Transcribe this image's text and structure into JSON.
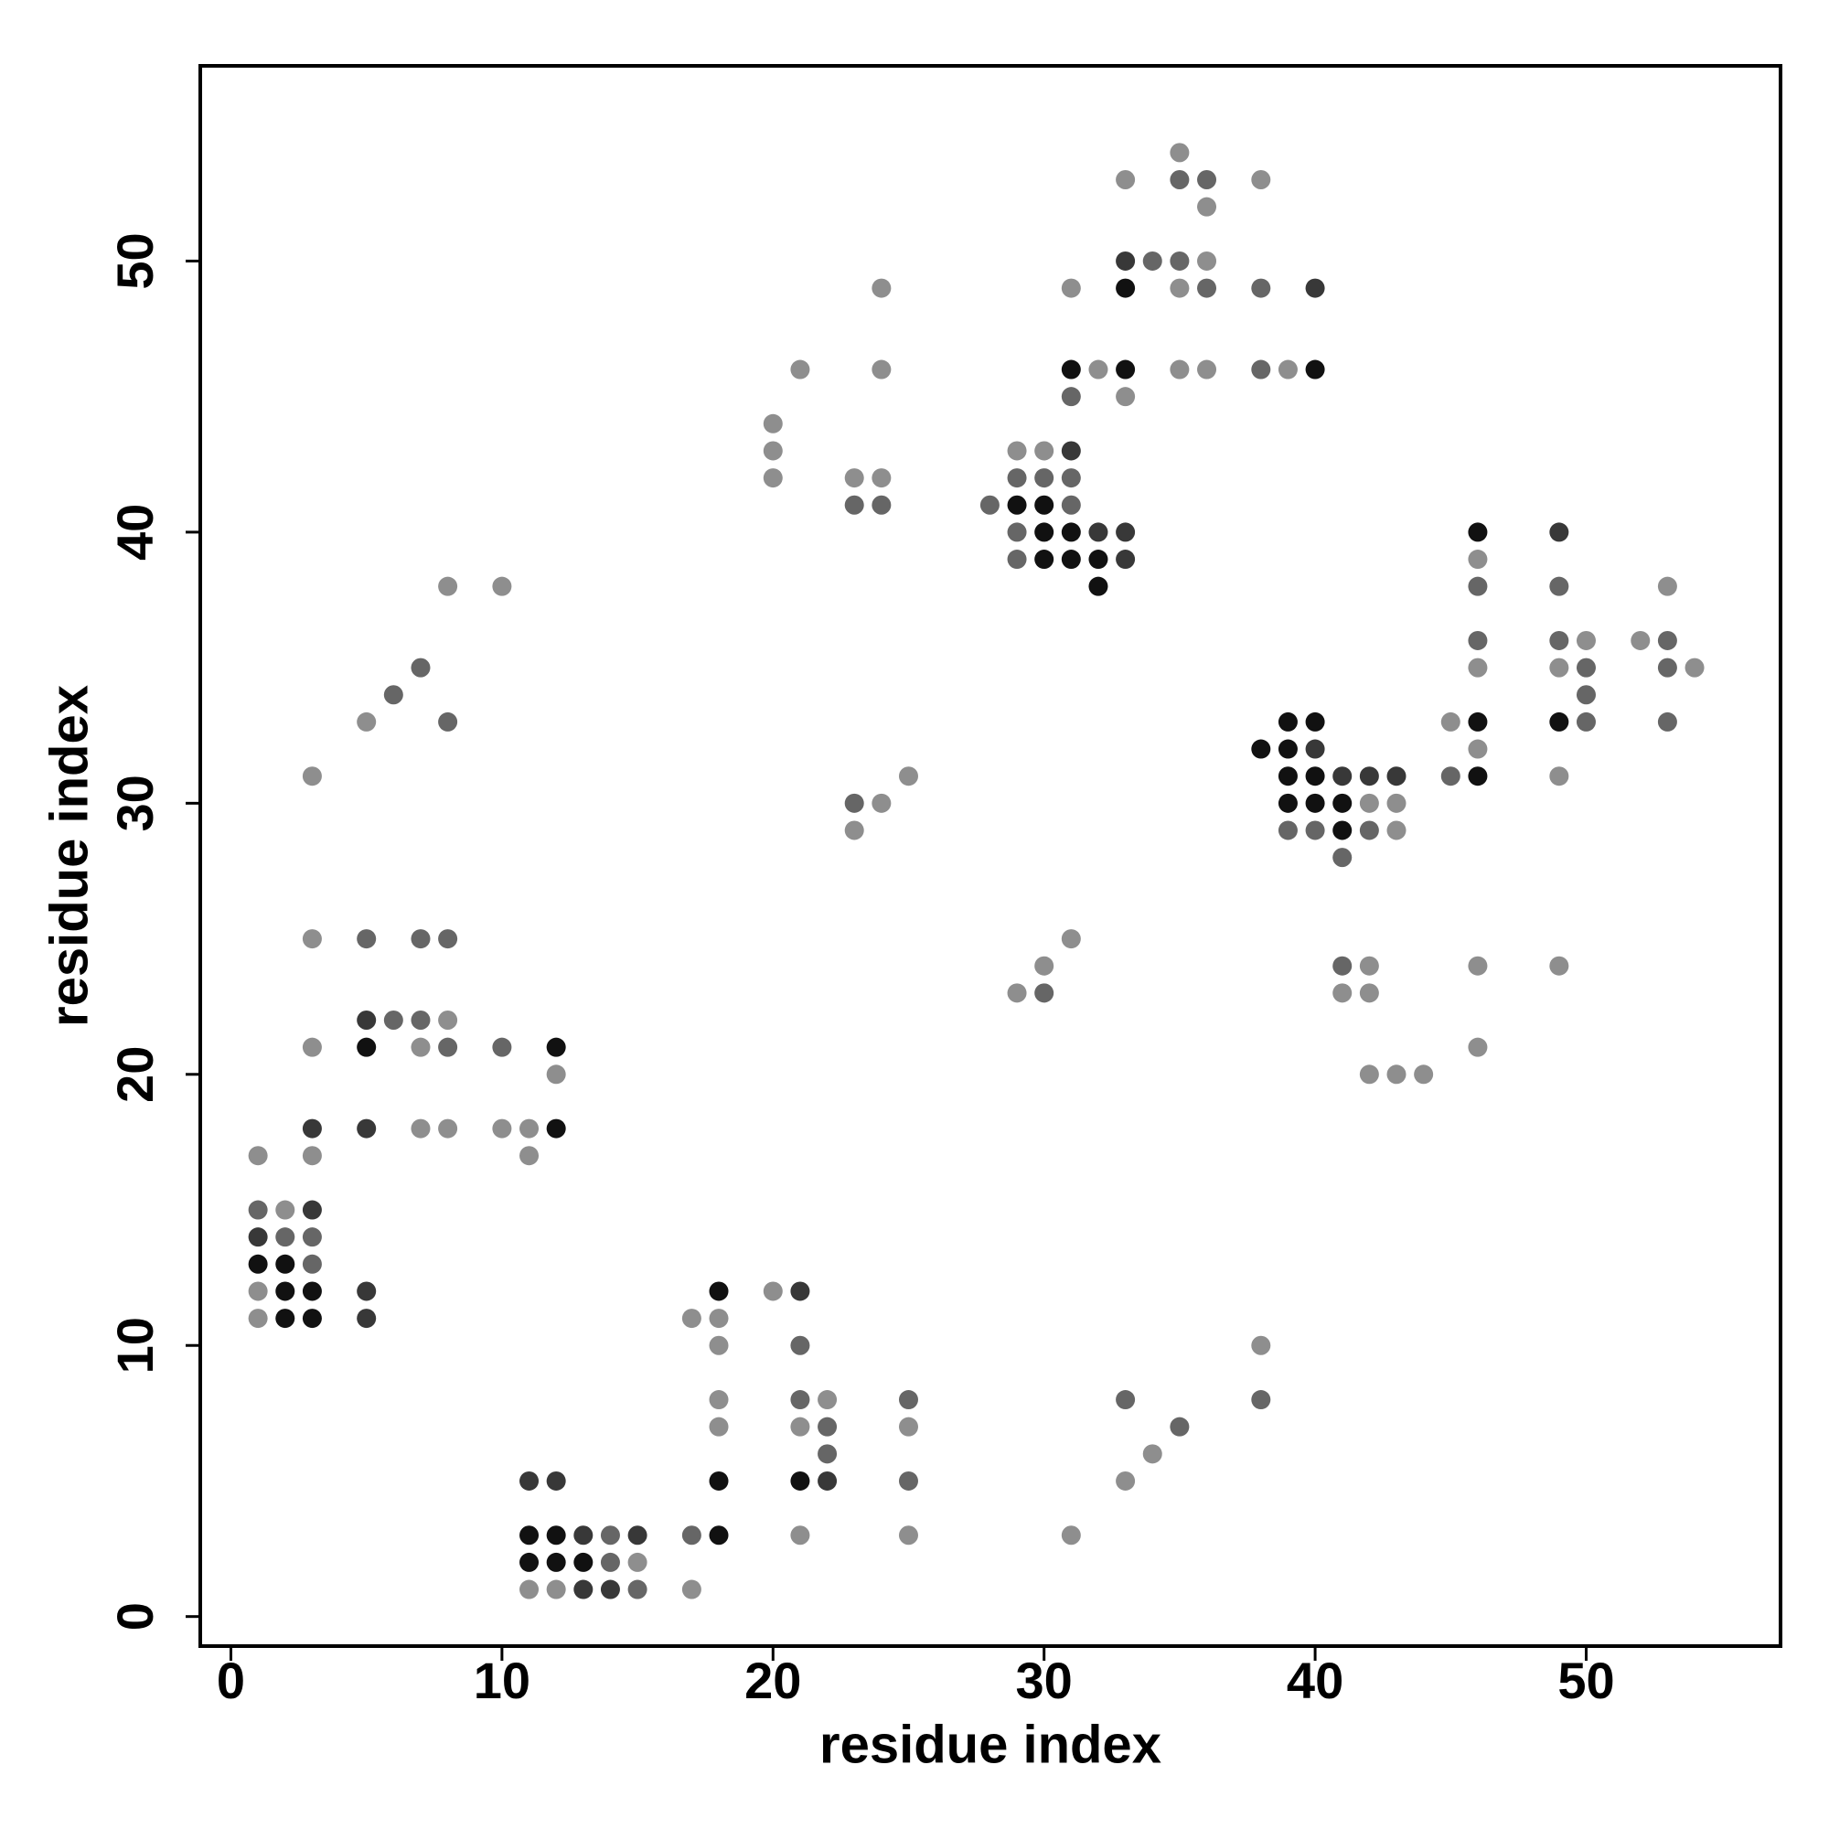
{
  "chart_data": {
    "type": "scatter",
    "x_label": "residue index",
    "y_label": "residue index",
    "xlim": [
      -1.13,
      57.17
    ],
    "ylim": [
      -1.09,
      57.2
    ],
    "xticks": [
      0,
      10,
      20,
      30,
      40,
      50
    ],
    "yticks": [
      0,
      10,
      20,
      30,
      40,
      50
    ],
    "grid": false,
    "series": [
      {
        "color": "#8e8e8e",
        "x": [
          35,
          33,
          38,
          36,
          36,
          24,
          31,
          35,
          21,
          24,
          32,
          35,
          36,
          39,
          33,
          20,
          20,
          29,
          30,
          20,
          23,
          24,
          46,
          8,
          10,
          53,
          50,
          52,
          46,
          49,
          54,
          5,
          45,
          46,
          3,
          25,
          49,
          24,
          42,
          43,
          23,
          43,
          3,
          31,
          30,
          42,
          46,
          49,
          29,
          41,
          42,
          8,
          3,
          7,
          46,
          12,
          42,
          43,
          44,
          7,
          8,
          10,
          11,
          1,
          3,
          11,
          2,
          1,
          20,
          1,
          17,
          18,
          18,
          38,
          18,
          22,
          18,
          21,
          25,
          34,
          33,
          21,
          25,
          31,
          15,
          11,
          12,
          17
        ],
        "values": [
          54,
          53,
          53,
          52,
          50,
          49,
          49,
          49,
          46,
          46,
          46,
          46,
          46,
          46,
          45,
          44,
          43,
          43,
          43,
          42,
          42,
          42,
          39,
          38,
          38,
          38,
          36,
          36,
          35,
          35,
          35,
          33,
          33,
          32,
          31,
          31,
          31,
          30,
          30,
          30,
          29,
          29,
          25,
          25,
          24,
          24,
          24,
          24,
          23,
          23,
          23,
          22,
          21,
          21,
          21,
          20,
          20,
          20,
          20,
          18,
          18,
          18,
          18,
          17,
          17,
          17,
          15,
          12,
          12,
          11,
          11,
          11,
          10,
          10,
          8,
          8,
          7,
          7,
          7,
          6,
          5,
          3,
          3,
          3,
          2,
          1,
          1,
          1
        ]
      },
      {
        "color": "#666666",
        "x": [
          35,
          36,
          34,
          35,
          36,
          38,
          38,
          31,
          29,
          30,
          31,
          23,
          24,
          28,
          31,
          29,
          29,
          46,
          49,
          46,
          49,
          53,
          7,
          50,
          53,
          6,
          50,
          8,
          50,
          53,
          45,
          23,
          39,
          40,
          42,
          41,
          5,
          7,
          8,
          41,
          30,
          6,
          7,
          8,
          10,
          1,
          2,
          3,
          3,
          21,
          21,
          25,
          33,
          38,
          22,
          35,
          22,
          25,
          14,
          17,
          14,
          15
        ],
        "values": [
          53,
          53,
          50,
          50,
          49,
          49,
          46,
          45,
          42,
          42,
          42,
          41,
          41,
          41,
          41,
          40,
          39,
          38,
          38,
          36,
          36,
          36,
          35,
          35,
          35,
          34,
          34,
          33,
          33,
          33,
          31,
          30,
          29,
          29,
          29,
          28,
          25,
          25,
          25,
          24,
          23,
          22,
          22,
          21,
          21,
          15,
          14,
          14,
          13,
          10,
          8,
          8,
          8,
          8,
          7,
          7,
          6,
          5,
          3,
          3,
          2,
          1
        ]
      },
      {
        "color": "#383838",
        "x": [
          33,
          40,
          31,
          32,
          33,
          49,
          33,
          40,
          41,
          42,
          43,
          5,
          3,
          5,
          3,
          1,
          5,
          21,
          5,
          11,
          12,
          22,
          13,
          15,
          13,
          14
        ],
        "values": [
          50,
          49,
          43,
          40,
          40,
          40,
          39,
          32,
          31,
          31,
          31,
          22,
          18,
          18,
          15,
          14,
          12,
          12,
          11,
          5,
          5,
          5,
          3,
          3,
          1,
          1
        ]
      },
      {
        "color": "#111111",
        "x": [
          33,
          31,
          33,
          40,
          29,
          30,
          30,
          31,
          46,
          30,
          31,
          32,
          32,
          39,
          40,
          46,
          49,
          38,
          39,
          39,
          40,
          46,
          39,
          40,
          41,
          41,
          5,
          12,
          12,
          1,
          2,
          2,
          3,
          18,
          2,
          3,
          18,
          21,
          11,
          12,
          18,
          11,
          12,
          13
        ],
        "values": [
          49,
          46,
          46,
          46,
          41,
          41,
          40,
          40,
          40,
          39,
          39,
          39,
          38,
          33,
          33,
          33,
          33,
          32,
          32,
          31,
          31,
          31,
          30,
          30,
          30,
          29,
          21,
          21,
          18,
          13,
          13,
          12,
          12,
          12,
          11,
          11,
          5,
          5,
          3,
          3,
          3,
          2,
          2,
          2
        ]
      }
    ]
  }
}
